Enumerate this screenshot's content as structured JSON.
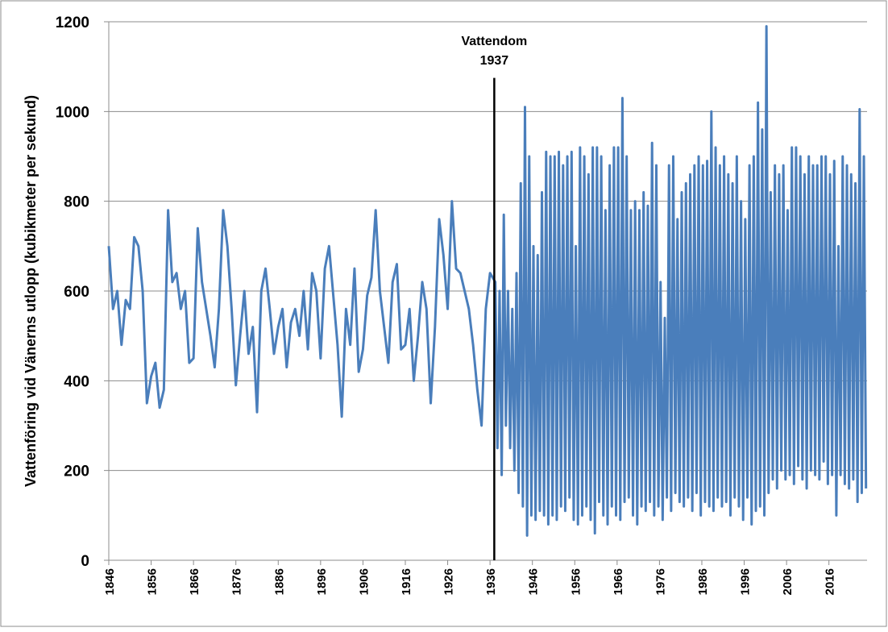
{
  "chart_data": {
    "type": "line",
    "y_label": "Vattenföring vid Vänerns utlopp (kubikmeter per sekund)",
    "annotation": {
      "text": [
        "Vattendom",
        "1937"
      ],
      "x": 1937,
      "ylim": [
        0,
        1075
      ],
      "color": "#000000"
    },
    "xlim": [
      1846,
      2025
    ],
    "xticks": [
      1846,
      1856,
      1866,
      1876,
      1886,
      1896,
      1906,
      1916,
      1926,
      1936,
      1946,
      1956,
      1966,
      1976,
      1986,
      1996,
      2006,
      2016
    ],
    "ylim": [
      0,
      1200
    ],
    "yticks": [
      0,
      200,
      400,
      600,
      800,
      1000,
      1200
    ],
    "grid": true,
    "x": [
      1846,
      1847,
      1848,
      1849,
      1850,
      1851,
      1852,
      1853,
      1854,
      1855,
      1856,
      1857,
      1858,
      1859,
      1860,
      1861,
      1862,
      1863,
      1864,
      1865,
      1866,
      1867,
      1868,
      1869,
      1870,
      1871,
      1872,
      1873,
      1874,
      1875,
      1876,
      1877,
      1878,
      1879,
      1880,
      1881,
      1882,
      1883,
      1884,
      1885,
      1886,
      1887,
      1888,
      1889,
      1890,
      1891,
      1892,
      1893,
      1894,
      1895,
      1896,
      1897,
      1898,
      1899,
      1900,
      1901,
      1902,
      1903,
      1904,
      1905,
      1906,
      1907,
      1908,
      1909,
      1910,
      1911,
      1912,
      1913,
      1914,
      1915,
      1916,
      1917,
      1918,
      1919,
      1920,
      1921,
      1922,
      1923,
      1924,
      1925,
      1926,
      1927,
      1928,
      1929,
      1930,
      1931,
      1932,
      1933,
      1934,
      1935,
      1936,
      1937.25,
      1937.75,
      1938.25,
      1938.75,
      1939.25,
      1939.75,
      1940.25,
      1940.75,
      1941.25,
      1941.75,
      1942.25,
      1942.75,
      1943.25,
      1943.75,
      1944.25,
      1944.75,
      1945.25,
      1945.75,
      1946.25,
      1946.75,
      1947.25,
      1947.75,
      1948.25,
      1948.75,
      1949.25,
      1949.75,
      1950.25,
      1950.75,
      1951.25,
      1951.75,
      1952.25,
      1952.75,
      1953.25,
      1953.75,
      1954.25,
      1954.75,
      1955.25,
      1955.75,
      1956.25,
      1956.75,
      1957.25,
      1957.75,
      1958.25,
      1958.75,
      1959.25,
      1959.75,
      1960.25,
      1960.75,
      1961.25,
      1961.75,
      1962.25,
      1962.75,
      1963.25,
      1963.75,
      1964.25,
      1964.75,
      1965.25,
      1965.75,
      1966.25,
      1966.75,
      1967.25,
      1967.75,
      1968.25,
      1968.75,
      1969.25,
      1969.75,
      1970.25,
      1970.75,
      1971.25,
      1971.75,
      1972.25,
      1972.75,
      1973.25,
      1973.75,
      1974.25,
      1974.75,
      1975.25,
      1975.75,
      1976.25,
      1976.75,
      1977.25,
      1977.75,
      1978.25,
      1978.75,
      1979.25,
      1979.75,
      1980.25,
      1980.75,
      1981.25,
      1981.75,
      1982.25,
      1982.75,
      1983.25,
      1983.75,
      1984.25,
      1984.75,
      1985.25,
      1985.75,
      1986.25,
      1986.75,
      1987.25,
      1987.75,
      1988.25,
      1988.75,
      1989.25,
      1989.75,
      1990.25,
      1990.75,
      1991.25,
      1991.75,
      1992.25,
      1992.75,
      1993.25,
      1993.75,
      1994.25,
      1994.75,
      1995.25,
      1995.75,
      1996.25,
      1996.75,
      1997.25,
      1997.75,
      1998.25,
      1998.75,
      1999.25,
      1999.75,
      2000.25,
      2000.75,
      2001.25,
      2001.75,
      2002.25,
      2002.75,
      2003.25,
      2003.75,
      2004.25,
      2004.75,
      2005.25,
      2005.75,
      2006.25,
      2006.75,
      2007.25,
      2007.75,
      2008.25,
      2008.75,
      2009.25,
      2009.75,
      2010.25,
      2010.75,
      2011.25,
      2011.75,
      2012.25,
      2012.75,
      2013.25,
      2013.75,
      2014.25,
      2014.75,
      2015.25,
      2015.75,
      2016.25,
      2016.75,
      2017.25,
      2017.75,
      2018.25,
      2018.75,
      2019.25,
      2019.75,
      2020.25,
      2020.75,
      2021.25,
      2021.75,
      2022.25,
      2022.75,
      2023.25,
      2023.75,
      2024.25,
      2024.75
    ],
    "series": [
      {
        "color": "#4a7ebb",
        "values": [
          700,
          560,
          600,
          480,
          580,
          560,
          720,
          700,
          600,
          350,
          410,
          440,
          340,
          380,
          780,
          620,
          640,
          560,
          600,
          440,
          450,
          740,
          620,
          560,
          500,
          430,
          560,
          780,
          700,
          560,
          390,
          500,
          600,
          460,
          520,
          330,
          600,
          650,
          560,
          460,
          520,
          560,
          430,
          530,
          560,
          500,
          600,
          470,
          640,
          600,
          450,
          650,
          700,
          590,
          480,
          320,
          560,
          480,
          650,
          420,
          470,
          590,
          630,
          780,
          600,
          520,
          440,
          620,
          660,
          470,
          480,
          560,
          400,
          500,
          620,
          560,
          350,
          520,
          760,
          680,
          560,
          800,
          650,
          640,
          600,
          560,
          480,
          380,
          300,
          560,
          640,
          620,
          250,
          600,
          190,
          770,
          300,
          600,
          250,
          560,
          200,
          640,
          150,
          840,
          120,
          1010,
          55,
          900,
          100,
          700,
          90,
          680,
          110,
          820,
          100,
          910,
          80,
          900,
          100,
          900,
          90,
          910,
          120,
          880,
          110,
          900,
          140,
          910,
          90,
          700,
          80,
          920,
          100,
          900,
          120,
          860,
          90,
          920,
          60,
          920,
          130,
          900,
          100,
          780,
          80,
          880,
          120,
          920,
          100,
          920,
          90,
          1030,
          130,
          900,
          140,
          780,
          100,
          800,
          80,
          780,
          120,
          820,
          110,
          790,
          130,
          930,
          100,
          880,
          120,
          620,
          90,
          540,
          140,
          880,
          110,
          900,
          150,
          760,
          130,
          820,
          120,
          840,
          140,
          860,
          110,
          880,
          150,
          900,
          100,
          880,
          130,
          890,
          120,
          1000,
          110,
          920,
          140,
          880,
          120,
          900,
          130,
          860,
          100,
          840,
          140,
          900,
          120,
          800,
          90,
          760,
          140,
          880,
          80,
          900,
          110,
          1020,
          120,
          960,
          100,
          1190,
          150,
          820,
          180,
          880,
          160,
          860,
          200,
          880,
          180,
          780,
          190,
          920,
          170,
          920,
          210,
          900,
          180,
          860,
          160,
          900,
          200,
          880,
          190,
          880,
          180,
          900,
          220,
          900,
          170,
          860,
          190,
          890,
          100,
          700,
          190,
          900,
          170,
          880,
          160,
          860,
          180,
          840,
          130,
          1005,
          150,
          900,
          160
        ]
      }
    ]
  }
}
